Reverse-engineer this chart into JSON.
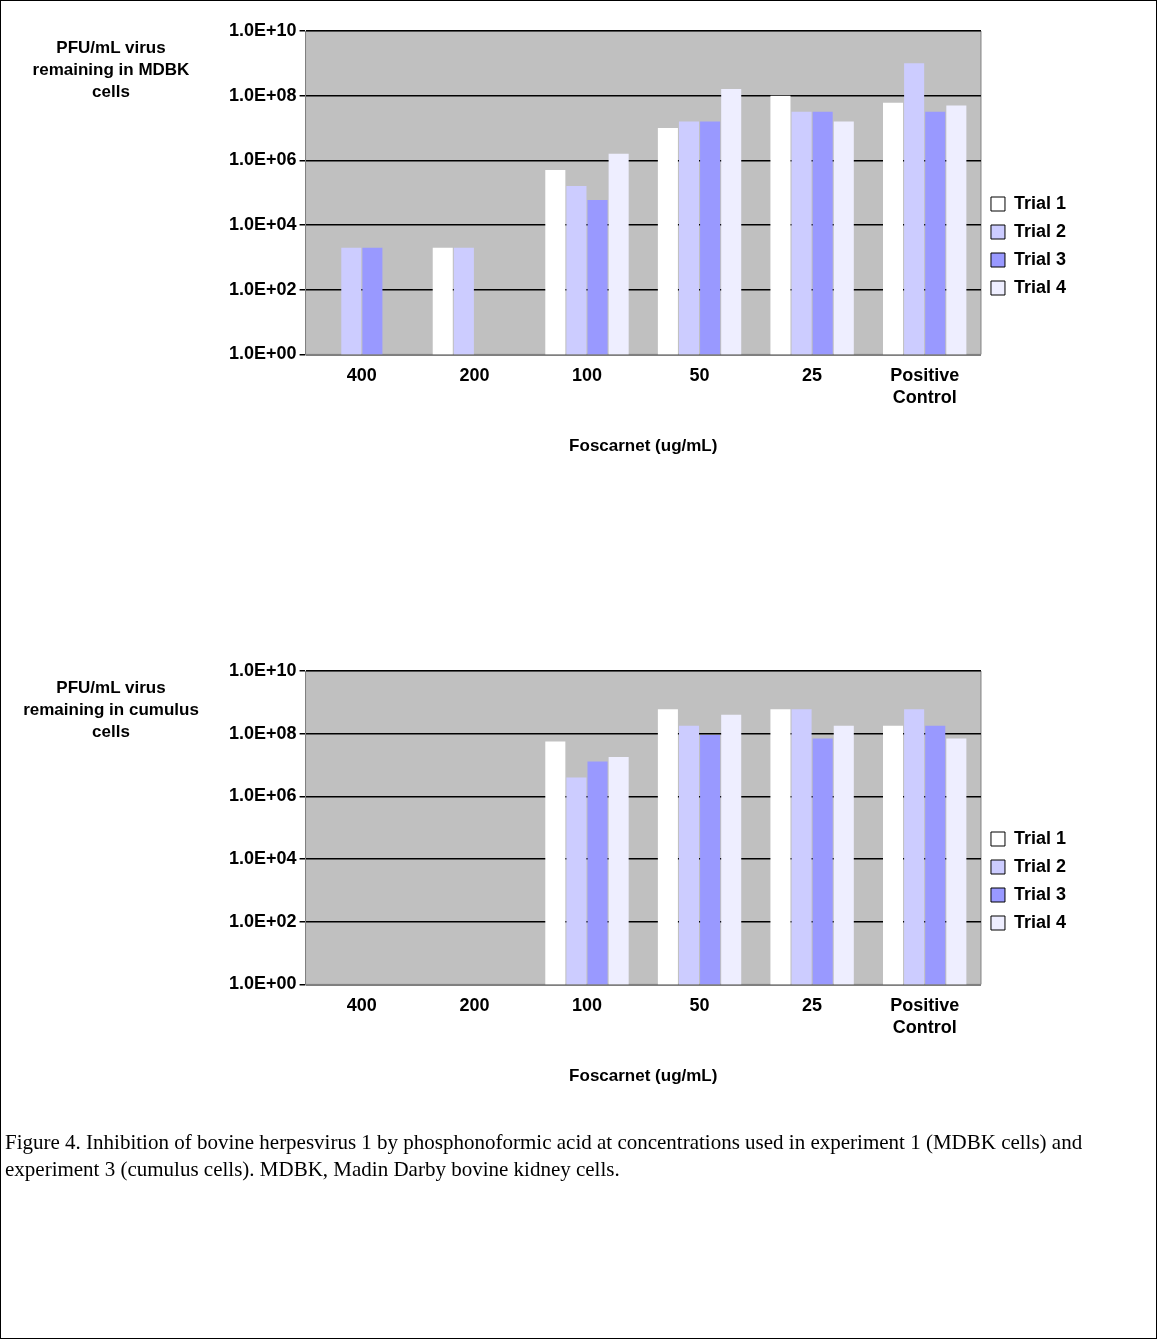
{
  "chart_data": [
    {
      "type": "bar",
      "ylabel": "PFU/mL virus remaining in MDBK cells",
      "xlabel": "Foscarnet (ug/mL)",
      "categories": [
        "400",
        "200",
        "100",
        "50",
        "25",
        "Positive Control"
      ],
      "series": [
        {
          "name": "Trial 1",
          "color": "#ffffff",
          "values": [
            1,
            2000,
            500000,
            10000000,
            100000000,
            60000000
          ]
        },
        {
          "name": "Trial 2",
          "color": "#ccccff",
          "values": [
            2000,
            2000,
            160000,
            16000000,
            32000000,
            1000000000
          ]
        },
        {
          "name": "Trial 3",
          "color": "#9999ff",
          "values": [
            2000,
            1,
            60000,
            16000000,
            32000000,
            32000000
          ]
        },
        {
          "name": "Trial 4",
          "color": "#eeeeff",
          "values": [
            1,
            1,
            1600000,
            160000000,
            16000000,
            50000000
          ]
        }
      ],
      "log": "y",
      "ylim": [
        1,
        10000000000
      ],
      "yticks": [
        {
          "value": 1,
          "label": "1.0E+00"
        },
        {
          "value": 100,
          "label": "1.0E+02"
        },
        {
          "value": 10000,
          "label": "1.0E+04"
        },
        {
          "value": 1000000,
          "label": "1.0E+06"
        },
        {
          "value": 100000000,
          "label": "1.0E+08"
        },
        {
          "value": 10000000000,
          "label": "1.0E+10"
        }
      ],
      "grid": "y",
      "legend": "right"
    },
    {
      "type": "bar",
      "ylabel": "PFU/mL virus remaining in cumulus cells",
      "xlabel": "Foscarnet (ug/mL)",
      "categories": [
        "400",
        "200",
        "100",
        "50",
        "25",
        "Positive Control"
      ],
      "series": [
        {
          "name": "Trial 1",
          "color": "#ffffff",
          "values": [
            1,
            1,
            56000000,
            600000000,
            600000000,
            180000000
          ]
        },
        {
          "name": "Trial 2",
          "color": "#ccccff",
          "values": [
            1,
            1,
            4000000,
            180000000,
            600000000,
            600000000
          ]
        },
        {
          "name": "Trial 3",
          "color": "#9999ff",
          "values": [
            1,
            1,
            13000000,
            90000000,
            70000000,
            180000000
          ]
        },
        {
          "name": "Trial 4",
          "color": "#eeeeff",
          "values": [
            1,
            1,
            18000000,
            400000000,
            180000000,
            70000000
          ]
        }
      ],
      "log": "y",
      "ylim": [
        1,
        10000000000
      ],
      "yticks": [
        {
          "value": 1,
          "label": "1.0E+00"
        },
        {
          "value": 100,
          "label": "1.0E+02"
        },
        {
          "value": 10000,
          "label": "1.0E+04"
        },
        {
          "value": 1000000,
          "label": "1.0E+06"
        },
        {
          "value": 100000000,
          "label": "1.0E+08"
        },
        {
          "value": 10000000000,
          "label": "1.0E+10"
        }
      ],
      "grid": "y",
      "legend": "right",
      "annotations": [
        "Figure 4.  Inhibition of bovine herpesvirus 1 by phosphonoformic acid at concentrations used in experiment 1 (MDBK cells) and experiment 3 (cumulus cells).  MDBK, Madin Darby bovine kidney cells."
      ]
    }
  ]
}
